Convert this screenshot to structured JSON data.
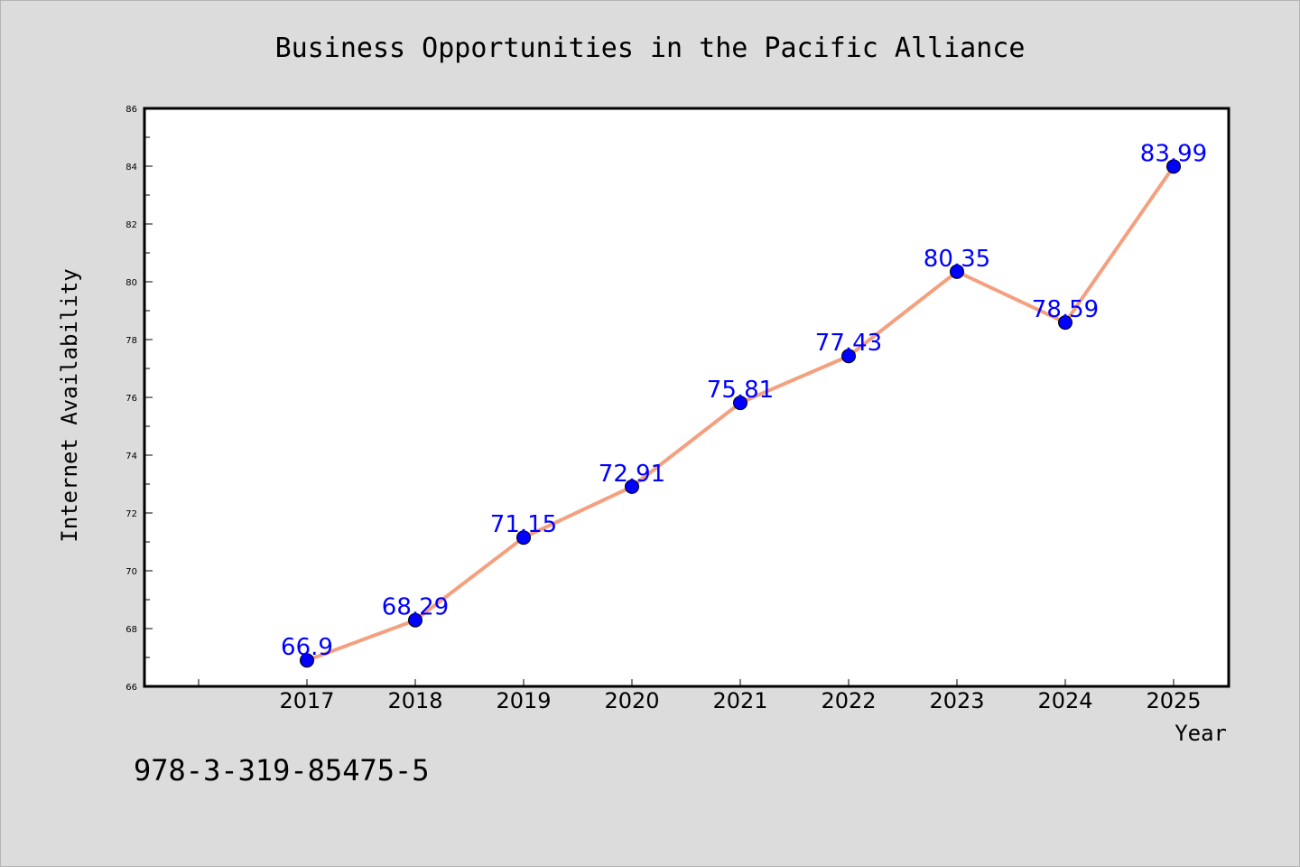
{
  "chart_data": {
    "type": "line",
    "title": "Business Opportunities in the Pacific Alliance",
    "xlabel": "Year",
    "ylabel": "Internet Availability",
    "categories": [
      "2017",
      "2018",
      "2019",
      "2020",
      "2021",
      "2022",
      "2023",
      "2024",
      "2025"
    ],
    "series": [
      {
        "values": [
          66.9,
          68.29,
          71.15,
          72.91,
          75.81,
          77.43,
          80.35,
          78.59,
          83.99
        ],
        "labels": [
          "66.9",
          "68.29",
          "71.15",
          "72.91",
          "75.81",
          "77.43",
          "80.35",
          "78.59",
          "83.99"
        ],
        "line_color": "#f4a07e",
        "marker_color": "#0000ff"
      }
    ],
    "ylim": [
      66,
      86
    ],
    "yticks": [
      "66",
      "68",
      "70",
      "72",
      "74",
      "76",
      "78",
      "80",
      "82",
      "84",
      "86"
    ],
    "grid": false,
    "legend": "none"
  },
  "annotation": "978-3-319-85475-5",
  "colors": {
    "background": "#dcdcdc",
    "plot_background": "#ffffff",
    "label_color": "#0000ff"
  }
}
